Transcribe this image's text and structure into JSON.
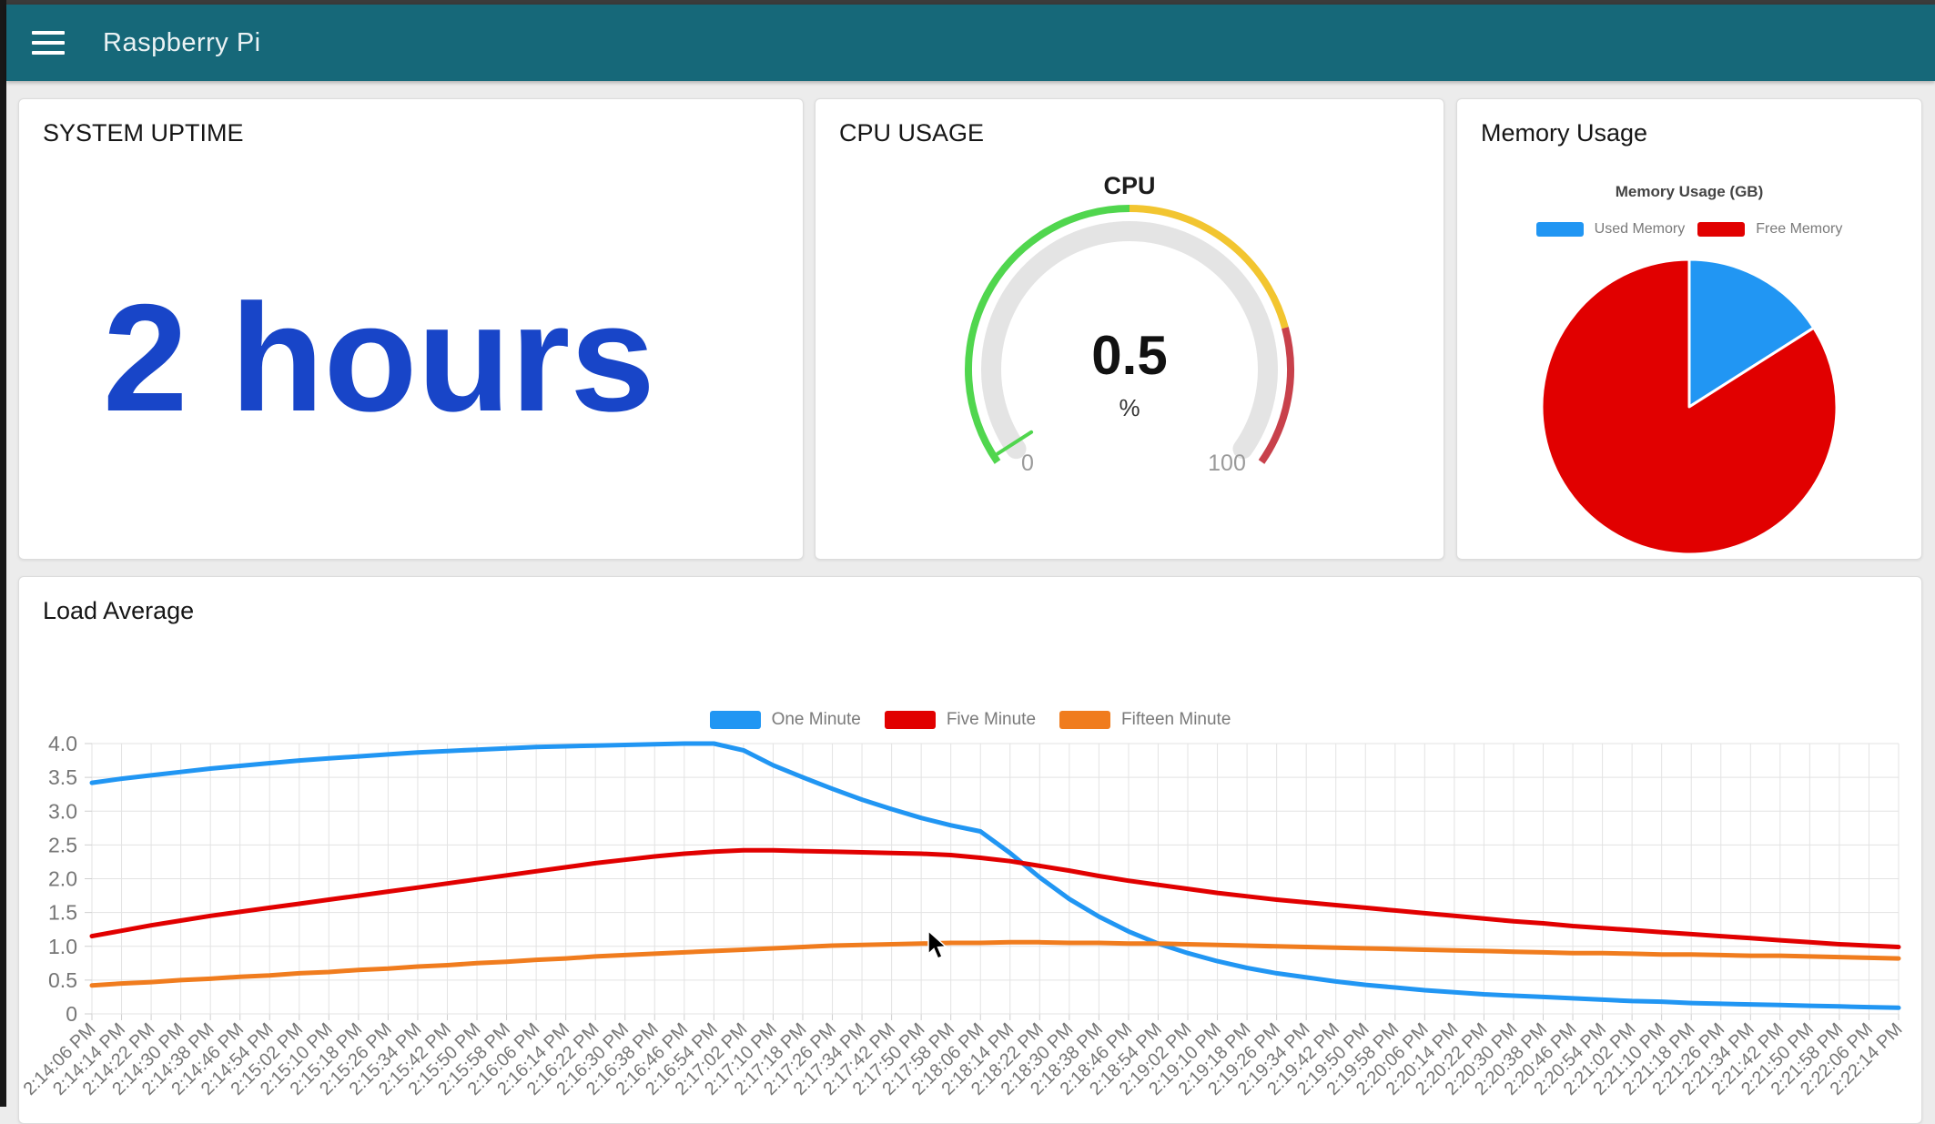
{
  "colors": {
    "navbar": "#166879",
    "page_bg": "#ececec",
    "uptime_value": "#1845C8",
    "series_blue": "#2196F3",
    "series_red": "#E10000",
    "series_orange": "#F07C1E",
    "gauge_green": "#50D64E",
    "gauge_yellow": "#F2C530",
    "gauge_red": "#C8414B"
  },
  "navbar": {
    "title": "Raspberry Pi",
    "menu_icon": "hamburger-icon"
  },
  "cards": {
    "uptime": {
      "title": "SYSTEM UPTIME",
      "value": "2 hours"
    },
    "cpu": {
      "title": "CPU USAGE"
    },
    "memory": {
      "title": "Memory Usage"
    },
    "load": {
      "title": "Load Average"
    }
  },
  "chart_data": [
    {
      "id": "cpu-gauge",
      "type": "gauge",
      "label": "CPU",
      "value": 0.5,
      "value_display": "0.5",
      "unit": "%",
      "min": 0,
      "max": 100,
      "min_label": "0",
      "max_label": "100",
      "zones": [
        {
          "from": 0,
          "to": 50,
          "color": "#50D64E"
        },
        {
          "from": 50,
          "to": 80,
          "color": "#F2C530"
        },
        {
          "from": 80,
          "to": 100,
          "color": "#C8414B"
        }
      ],
      "track_color": "#e4e4e4"
    },
    {
      "id": "memory-pie",
      "type": "pie",
      "title": "Memory Usage (GB)",
      "legend_position": "top",
      "slices": [
        {
          "label": "Used Memory",
          "value": 16,
          "color": "#2196F3"
        },
        {
          "label": "Free Memory",
          "value": 84,
          "color": "#E10000"
        }
      ]
    },
    {
      "id": "load-line",
      "type": "line",
      "title": "Load Average",
      "legend_position": "top",
      "grid": true,
      "ylim": [
        0,
        4
      ],
      "ytick_step": 0.5,
      "yticks": [
        "0",
        "0.5",
        "1.0",
        "1.5",
        "2.0",
        "2.5",
        "3.0",
        "3.5",
        "4.0"
      ],
      "x": [
        "2:14:06 PM",
        "2:14:14 PM",
        "2:14:22 PM",
        "2:14:30 PM",
        "2:14:38 PM",
        "2:14:46 PM",
        "2:14:54 PM",
        "2:15:02 PM",
        "2:15:10 PM",
        "2:15:18 PM",
        "2:15:26 PM",
        "2:15:34 PM",
        "2:15:42 PM",
        "2:15:50 PM",
        "2:15:58 PM",
        "2:16:06 PM",
        "2:16:14 PM",
        "2:16:22 PM",
        "2:16:30 PM",
        "2:16:38 PM",
        "2:16:46 PM",
        "2:16:54 PM",
        "2:17:02 PM",
        "2:17:10 PM",
        "2:17:18 PM",
        "2:17:26 PM",
        "2:17:34 PM",
        "2:17:42 PM",
        "2:17:50 PM",
        "2:17:58 PM",
        "2:18:06 PM",
        "2:18:14 PM",
        "2:18:22 PM",
        "2:18:30 PM",
        "2:18:38 PM",
        "2:18:46 PM",
        "2:18:54 PM",
        "2:19:02 PM",
        "2:19:10 PM",
        "2:19:18 PM",
        "2:19:26 PM",
        "2:19:34 PM",
        "2:19:42 PM",
        "2:19:50 PM",
        "2:19:58 PM",
        "2:20:06 PM",
        "2:20:14 PM",
        "2:20:22 PM",
        "2:20:30 PM",
        "2:20:38 PM",
        "2:20:46 PM",
        "2:20:54 PM",
        "2:21:02 PM",
        "2:21:10 PM",
        "2:21:18 PM",
        "2:21:26 PM",
        "2:21:34 PM",
        "2:21:42 PM",
        "2:21:50 PM",
        "2:21:58 PM",
        "2:22:06 PM",
        "2:22:14 PM"
      ],
      "series": [
        {
          "name": "One Minute",
          "color": "#2196F3",
          "values": [
            3.42,
            3.48,
            3.53,
            3.58,
            3.63,
            3.67,
            3.71,
            3.75,
            3.78,
            3.81,
            3.84,
            3.87,
            3.89,
            3.91,
            3.93,
            3.95,
            3.96,
            3.97,
            3.98,
            3.99,
            4.0,
            4.0,
            3.9,
            3.68,
            3.5,
            3.33,
            3.17,
            3.03,
            2.9,
            2.79,
            2.7,
            2.38,
            2.02,
            1.7,
            1.44,
            1.22,
            1.04,
            0.9,
            0.78,
            0.68,
            0.6,
            0.54,
            0.48,
            0.43,
            0.39,
            0.35,
            0.32,
            0.29,
            0.27,
            0.25,
            0.23,
            0.21,
            0.19,
            0.18,
            0.16,
            0.15,
            0.14,
            0.13,
            0.12,
            0.11,
            0.1,
            0.09
          ]
        },
        {
          "name": "Five Minute",
          "color": "#E10000",
          "values": [
            1.15,
            1.23,
            1.31,
            1.38,
            1.45,
            1.51,
            1.57,
            1.63,
            1.69,
            1.75,
            1.81,
            1.87,
            1.93,
            1.99,
            2.05,
            2.11,
            2.17,
            2.23,
            2.28,
            2.33,
            2.37,
            2.4,
            2.42,
            2.42,
            2.41,
            2.4,
            2.39,
            2.38,
            2.37,
            2.35,
            2.31,
            2.26,
            2.19,
            2.12,
            2.04,
            1.97,
            1.91,
            1.85,
            1.79,
            1.74,
            1.69,
            1.65,
            1.61,
            1.57,
            1.53,
            1.49,
            1.45,
            1.41,
            1.37,
            1.34,
            1.3,
            1.27,
            1.24,
            1.21,
            1.18,
            1.15,
            1.12,
            1.09,
            1.06,
            1.03,
            1.01,
            0.99
          ]
        },
        {
          "name": "Fifteen Minute",
          "color": "#F07C1E",
          "values": [
            0.42,
            0.45,
            0.47,
            0.5,
            0.52,
            0.55,
            0.57,
            0.6,
            0.62,
            0.65,
            0.67,
            0.7,
            0.72,
            0.75,
            0.77,
            0.8,
            0.82,
            0.85,
            0.87,
            0.89,
            0.91,
            0.93,
            0.95,
            0.97,
            0.99,
            1.01,
            1.02,
            1.03,
            1.04,
            1.05,
            1.05,
            1.06,
            1.06,
            1.05,
            1.05,
            1.04,
            1.04,
            1.03,
            1.02,
            1.01,
            1.0,
            0.99,
            0.98,
            0.97,
            0.96,
            0.95,
            0.94,
            0.93,
            0.92,
            0.91,
            0.9,
            0.9,
            0.89,
            0.88,
            0.88,
            0.87,
            0.86,
            0.86,
            0.85,
            0.84,
            0.83,
            0.82
          ]
        }
      ]
    }
  ]
}
